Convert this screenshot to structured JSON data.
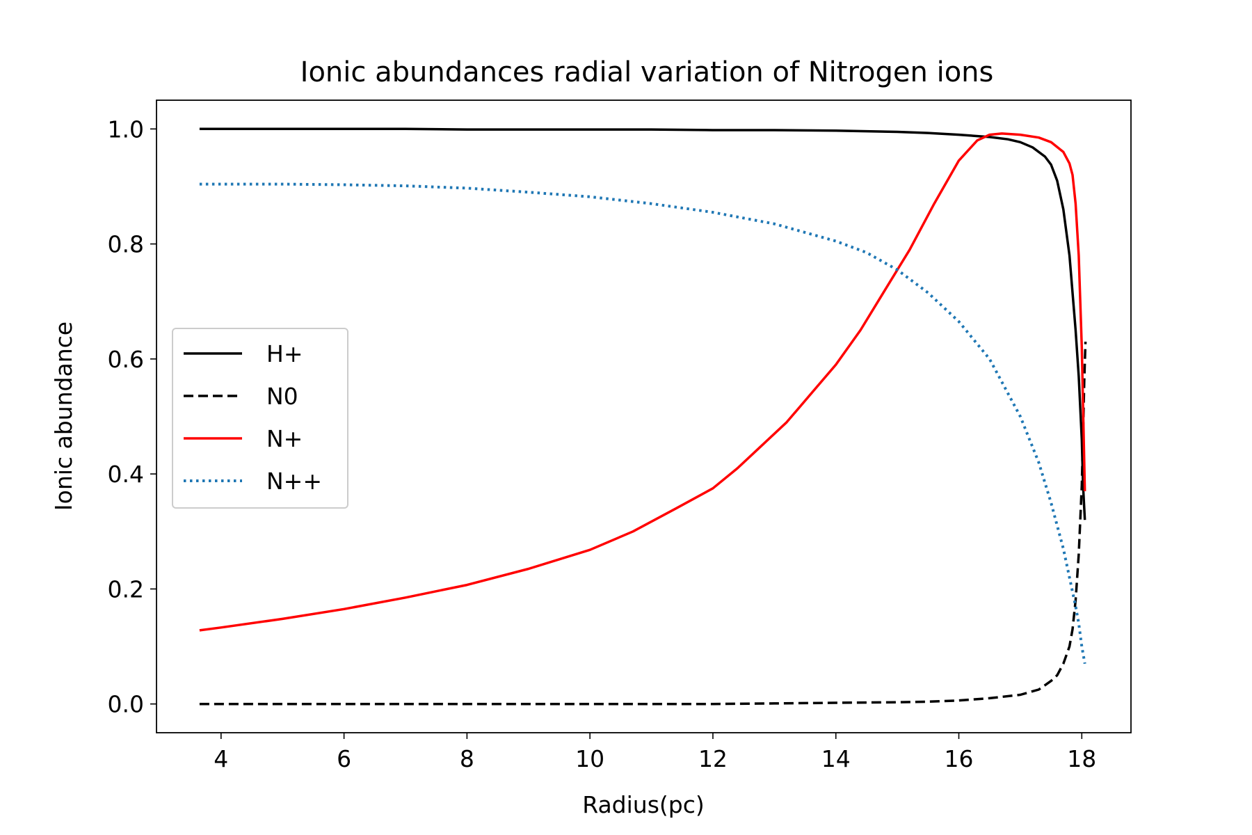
{
  "chart_data": {
    "type": "line",
    "title": "Ionic abundances radial variation of Nitrogen ions",
    "xlabel": "Radius(pc)",
    "ylabel": "Ionic abundance",
    "xlim": [
      2.95,
      18.8
    ],
    "ylim": [
      -0.05,
      1.05
    ],
    "xticks": [
      4,
      6,
      8,
      10,
      12,
      14,
      16,
      18
    ],
    "yticks": [
      0.0,
      0.2,
      0.4,
      0.6,
      0.8,
      1.0
    ],
    "xtick_labels": [
      "4",
      "6",
      "8",
      "10",
      "12",
      "14",
      "16",
      "18"
    ],
    "ytick_labels": [
      "0.0",
      "0.2",
      "0.4",
      "0.6",
      "0.8",
      "1.0"
    ],
    "grid": false,
    "legend_position": "center-left",
    "series": [
      {
        "name": "H+",
        "color": "#000000",
        "style": "solid",
        "x": [
          3.65,
          5,
          6,
          7,
          8,
          9,
          10,
          11,
          12,
          13,
          14,
          15,
          15.5,
          16,
          16.5,
          16.8,
          17.0,
          17.2,
          17.4,
          17.5,
          17.6,
          17.7,
          17.8,
          17.9,
          17.95,
          18.0,
          18.02,
          18.05
        ],
        "values": [
          1.0,
          1.0,
          1.0,
          1.0,
          0.999,
          0.999,
          0.999,
          0.999,
          0.998,
          0.998,
          0.997,
          0.995,
          0.993,
          0.99,
          0.986,
          0.982,
          0.977,
          0.968,
          0.952,
          0.938,
          0.91,
          0.86,
          0.78,
          0.65,
          0.57,
          0.46,
          0.38,
          0.32
        ]
      },
      {
        "name": "N0",
        "color": "#000000",
        "style": "dashed",
        "x": [
          3.65,
          6,
          8,
          10,
          12,
          13,
          14,
          15,
          15.5,
          16,
          16.5,
          17.0,
          17.3,
          17.5,
          17.6,
          17.7,
          17.8,
          17.85,
          17.9,
          17.95,
          18.0,
          18.02,
          18.04,
          18.06
        ],
        "values": [
          0.0,
          0.0,
          0.0,
          0.0,
          0.0,
          0.001,
          0.002,
          0.003,
          0.004,
          0.006,
          0.01,
          0.016,
          0.025,
          0.04,
          0.05,
          0.07,
          0.1,
          0.13,
          0.18,
          0.26,
          0.38,
          0.47,
          0.56,
          0.63
        ]
      },
      {
        "name": "N+",
        "color": "#ff0000",
        "style": "solid",
        "x": [
          3.65,
          4,
          5,
          6,
          7,
          8,
          9,
          10,
          10.7,
          11.4,
          12,
          12.4,
          12.8,
          13.2,
          13.6,
          14,
          14.4,
          14.8,
          15.2,
          15.6,
          16,
          16.3,
          16.5,
          16.7,
          17.0,
          17.3,
          17.5,
          17.7,
          17.8,
          17.85,
          17.9,
          17.95,
          18.0,
          18.05
        ],
        "values": [
          0.128,
          0.133,
          0.148,
          0.165,
          0.185,
          0.207,
          0.235,
          0.268,
          0.3,
          0.34,
          0.375,
          0.41,
          0.45,
          0.49,
          0.54,
          0.59,
          0.65,
          0.72,
          0.79,
          0.87,
          0.945,
          0.98,
          0.99,
          0.992,
          0.99,
          0.985,
          0.977,
          0.96,
          0.94,
          0.92,
          0.87,
          0.78,
          0.62,
          0.37
        ]
      },
      {
        "name": "N++",
        "color": "#1f77b4",
        "style": "dotted",
        "x": [
          3.65,
          5,
          6,
          7,
          8,
          9,
          10,
          11,
          12,
          13,
          14,
          14.5,
          15,
          15.5,
          16,
          16.5,
          17.0,
          17.3,
          17.5,
          17.7,
          17.8,
          17.9,
          17.95,
          18.0,
          18.05
        ],
        "values": [
          0.904,
          0.904,
          0.903,
          0.901,
          0.897,
          0.89,
          0.882,
          0.87,
          0.855,
          0.835,
          0.805,
          0.785,
          0.755,
          0.715,
          0.665,
          0.6,
          0.5,
          0.42,
          0.35,
          0.27,
          0.22,
          0.17,
          0.14,
          0.1,
          0.07
        ]
      }
    ]
  }
}
